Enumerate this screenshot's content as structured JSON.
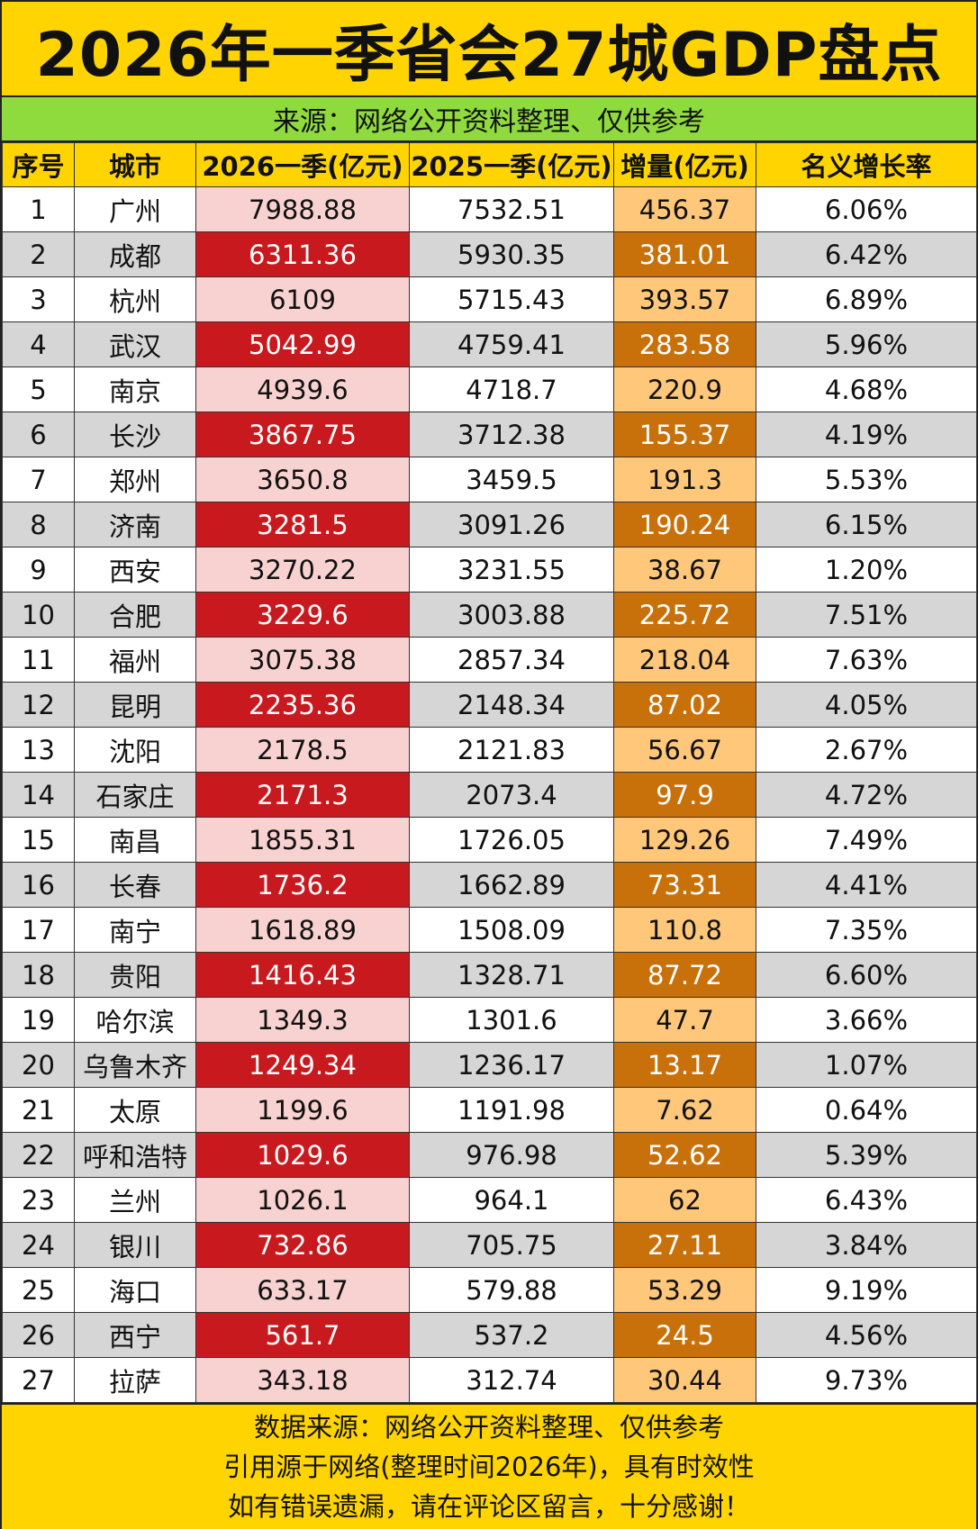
{
  "title": "2026年一季省会27城GDP盘点",
  "subtitle": "来源：网络公开资料整理、仅供参考",
  "headers": [
    "序号",
    "城市",
    "2026一季(亿元)",
    "2025一季(亿元)",
    "增量(亿元)",
    "名义增长率"
  ],
  "rows": [
    [
      "1",
      "广州",
      "7988.88",
      "7532.51",
      "456.37",
      "6.06%"
    ],
    [
      "2",
      "成都",
      "6311.36",
      "5930.35",
      "381.01",
      "6.42%"
    ],
    [
      "3",
      "杭州",
      "6109",
      "5715.43",
      "393.57",
      "6.89%"
    ],
    [
      "4",
      "武汉",
      "5042.99",
      "4759.41",
      "283.58",
      "5.96%"
    ],
    [
      "5",
      "南京",
      "4939.6",
      "4718.7",
      "220.9",
      "4.68%"
    ],
    [
      "6",
      "长沙",
      "3867.75",
      "3712.38",
      "155.37",
      "4.19%"
    ],
    [
      "7",
      "郑州",
      "3650.8",
      "3459.5",
      "191.3",
      "5.53%"
    ],
    [
      "8",
      "济南",
      "3281.5",
      "3091.26",
      "190.24",
      "6.15%"
    ],
    [
      "9",
      "西安",
      "3270.22",
      "3231.55",
      "38.67",
      "1.20%"
    ],
    [
      "10",
      "合肥",
      "3229.6",
      "3003.88",
      "225.72",
      "7.51%"
    ],
    [
      "11",
      "福州",
      "3075.38",
      "2857.34",
      "218.04",
      "7.63%"
    ],
    [
      "12",
      "昆明",
      "2235.36",
      "2148.34",
      "87.02",
      "4.05%"
    ],
    [
      "13",
      "沈阳",
      "2178.5",
      "2121.83",
      "56.67",
      "2.67%"
    ],
    [
      "14",
      "石家庄",
      "2171.3",
      "2073.4",
      "97.9",
      "4.72%"
    ],
    [
      "15",
      "南昌",
      "1855.31",
      "1726.05",
      "129.26",
      "7.49%"
    ],
    [
      "16",
      "长春",
      "1736.2",
      "1662.89",
      "73.31",
      "4.41%"
    ],
    [
      "17",
      "南宁",
      "1618.89",
      "1508.09",
      "110.8",
      "7.35%"
    ],
    [
      "18",
      "贵阳",
      "1416.43",
      "1328.71",
      "87.72",
      "6.60%"
    ],
    [
      "19",
      "哈尔滨",
      "1349.3",
      "1301.6",
      "47.7",
      "3.66%"
    ],
    [
      "20",
      "乌鲁木齐",
      "1249.34",
      "1236.17",
      "13.17",
      "1.07%"
    ],
    [
      "21",
      "太原",
      "1199.6",
      "1191.98",
      "7.62",
      "0.64%"
    ],
    [
      "22",
      "呼和浩特",
      "1029.6",
      "976.98",
      "52.62",
      "5.39%"
    ],
    [
      "23",
      "兰州",
      "1026.1",
      "964.1",
      "62",
      "6.43%"
    ],
    [
      "24",
      "银川",
      "732.86",
      "705.75",
      "27.11",
      "3.84%"
    ],
    [
      "25",
      "海口",
      "633.17",
      "579.88",
      "53.29",
      "9.19%"
    ],
    [
      "26",
      "西宁",
      "561.7",
      "537.2",
      "24.5",
      "4.56%"
    ],
    [
      "27",
      "拉萨",
      "343.18",
      "312.74",
      "30.44",
      "9.73%"
    ]
  ],
  "footer": [
    "数据来源：网络公开资料整理、仅供参考",
    "引用源于网络(整理时间2026年)，具有时效性",
    "如有错误遗漏，请在评论区留言，十分感谢！"
  ],
  "colors": {
    "title_bg": "#ffd400",
    "subtitle_bg": "#8fdb3e",
    "gdp2026_light": "#f8d2d0",
    "gdp2026_dark": "#c8191e",
    "increase_light": "#ffc77a",
    "increase_dark": "#c8710a",
    "row_alt": "#d6d6d6"
  }
}
